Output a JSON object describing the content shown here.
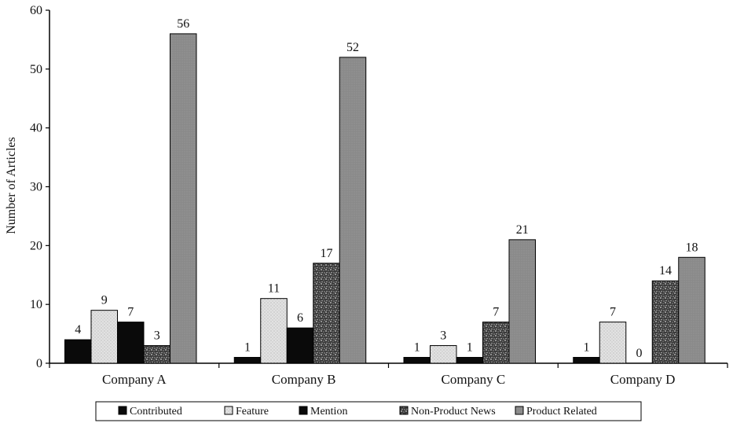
{
  "colors": {
    "contributed": "#0a0a0a",
    "feature": "#dcdcdc",
    "mention": "#0a0a0a",
    "non_product_news": "#6a6a6a",
    "product_related": "#8e8e8e"
  },
  "chart_data": {
    "type": "bar",
    "title": "",
    "xlabel": "",
    "ylabel": "Number of Articles",
    "ylim": [
      0,
      60
    ],
    "yticks": [
      "0",
      "10",
      "20",
      "30",
      "40",
      "50",
      "60"
    ],
    "grid": false,
    "legend_position": "bottom",
    "categories": [
      "Company A",
      "Company B",
      "Company C",
      "Company D"
    ],
    "series": [
      {
        "name": "Contributed",
        "values": [
          4,
          1,
          1,
          1
        ],
        "labels": [
          "4",
          "1",
          "1",
          "1"
        ],
        "color": "#0a0a0a",
        "pattern": "solid"
      },
      {
        "name": "Feature",
        "values": [
          9,
          11,
          3,
          7
        ],
        "labels": [
          "9",
          "11",
          "3",
          "7"
        ],
        "color": "#dcdcdc",
        "pattern": "light-dots"
      },
      {
        "name": "Mention",
        "values": [
          7,
          6,
          1,
          0
        ],
        "labels": [
          "7",
          "6",
          "1",
          "0"
        ],
        "color": "#0a0a0a",
        "pattern": "solid"
      },
      {
        "name": "Non-Product News",
        "values": [
          3,
          17,
          7,
          14
        ],
        "labels": [
          "3",
          "17",
          "7",
          "14"
        ],
        "color": "#6a6a6a",
        "pattern": "dark-speckle"
      },
      {
        "name": "Product Related",
        "values": [
          56,
          52,
          21,
          18
        ],
        "labels": [
          "56",
          "52",
          "21",
          "18"
        ],
        "color": "#8e8e8e",
        "pattern": "fine-dots"
      }
    ]
  }
}
